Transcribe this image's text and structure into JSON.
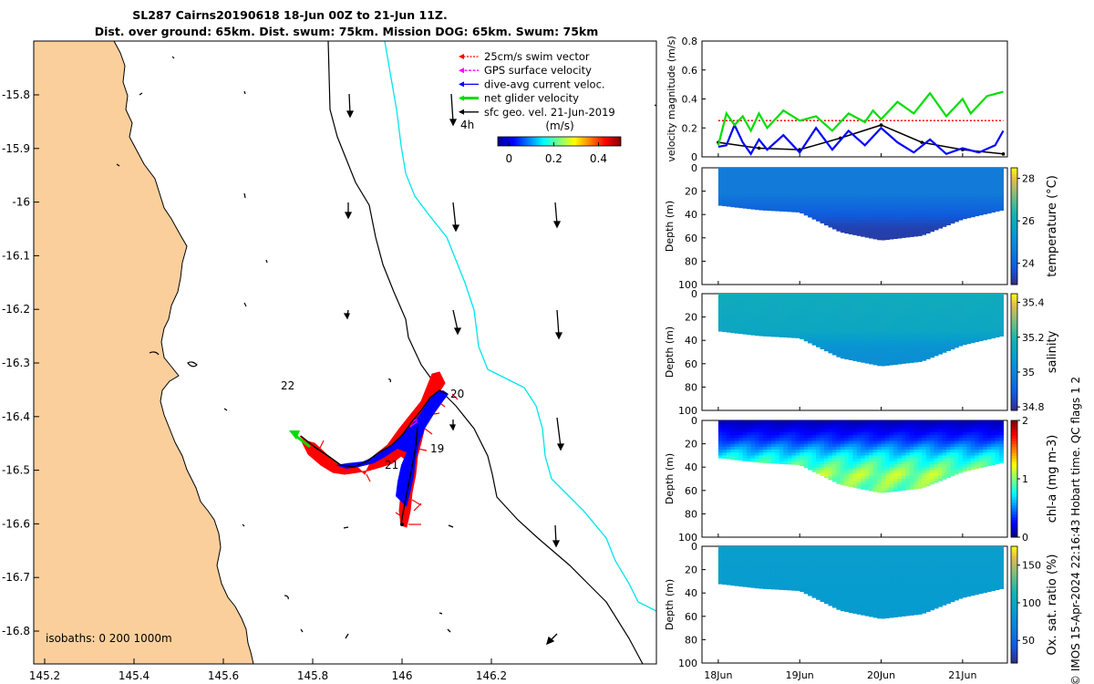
{
  "title": {
    "line1": "SL287 Cairns20190618 18-Jun 00Z to 21-Jun 11Z.",
    "line2": "Dist. over ground: 65km. Dist. swum: 75km. Mission DOG: 65km. Swum: 75km"
  },
  "colors": {
    "land": "#fbcf9c",
    "isobath": "#000000",
    "isobath1000": "#00e5ee",
    "swim": "#ff0000",
    "gps": "#ff00ff",
    "current": "#0000ff",
    "net": "#00dd00",
    "geo": "#000000"
  },
  "map": {
    "x_ticks": [
      "145.2",
      "145.4",
      "145.6",
      "145.8",
      "146",
      "146.2"
    ],
    "y_ticks": [
      "-15.8",
      "-15.9",
      "-16",
      "-16.1",
      "-16.2",
      "-16.3",
      "-16.4",
      "-16.5",
      "-16.6",
      "-16.7",
      "-16.8"
    ],
    "legend": [
      {
        "label": "25cm/s swim vector",
        "color": "#ff0000"
      },
      {
        "label": "GPS surface velocity",
        "color": "#ff00ff"
      },
      {
        "label": "dive-avg current veloc.",
        "color": "#0000ff"
      },
      {
        "label": "net glider velocity",
        "color": "#00dd00"
      },
      {
        "label": "sfc geo. vel. 21-Jun-2019",
        "color": "#000000"
      }
    ],
    "colorbar_unit": "(m/s)",
    "colorbar_ticks": [
      "0",
      "0.2",
      "0.4"
    ],
    "time_marker": "4h",
    "day_labels": [
      "19",
      "20",
      "21",
      "22"
    ],
    "isobath_note": "isobaths: 0   200  1000m"
  },
  "chart_data": [
    {
      "type": "line",
      "ylabel": "velocity magnitude (m/s)",
      "ylim": [
        0,
        0.8
      ],
      "y_ticks": [
        "0",
        "0.2",
        "0.4",
        "0.6",
        "0.8"
      ],
      "x_ticks": [
        "18Jun",
        "19Jun",
        "20Jun",
        "21Jun"
      ],
      "xlim": [
        -0.2,
        3.55
      ],
      "series": [
        {
          "color": "#ff0000",
          "style": "dashed",
          "x": [
            0,
            3.5
          ],
          "values": [
            0.25,
            0.25
          ]
        },
        {
          "color": "#000000",
          "style": "markers",
          "x": [
            0,
            0.5,
            1.0,
            1.5,
            2.0,
            2.5,
            3.0,
            3.5
          ],
          "values": [
            0.1,
            0.06,
            0.05,
            0.13,
            0.22,
            0.1,
            0.05,
            0.02
          ]
        },
        {
          "color": "#0000ff",
          "x": [
            0,
            0.1,
            0.2,
            0.3,
            0.4,
            0.5,
            0.6,
            0.8,
            1.0,
            1.2,
            1.4,
            1.6,
            1.8,
            2.0,
            2.2,
            2.4,
            2.6,
            2.8,
            3.0,
            3.2,
            3.4,
            3.5
          ],
          "values": [
            0.07,
            0.08,
            0.22,
            0.1,
            0.02,
            0.12,
            0.05,
            0.15,
            0.03,
            0.2,
            0.05,
            0.18,
            0.08,
            0.2,
            0.1,
            0.03,
            0.12,
            0.02,
            0.06,
            0.03,
            0.08,
            0.18
          ]
        },
        {
          "color": "#00dd00",
          "x": [
            0,
            0.1,
            0.2,
            0.3,
            0.4,
            0.5,
            0.6,
            0.8,
            1.0,
            1.2,
            1.4,
            1.6,
            1.8,
            1.9,
            2.0,
            2.2,
            2.4,
            2.6,
            2.8,
            3.0,
            3.1,
            3.3,
            3.5
          ],
          "values": [
            0.08,
            0.3,
            0.22,
            0.28,
            0.18,
            0.3,
            0.2,
            0.32,
            0.25,
            0.28,
            0.18,
            0.3,
            0.24,
            0.32,
            0.26,
            0.38,
            0.3,
            0.44,
            0.28,
            0.4,
            0.3,
            0.42,
            0.45
          ]
        }
      ]
    },
    {
      "type": "heatmap",
      "ylabel": "Depth (m)",
      "cblabel": "temperature (°C)",
      "ylim": [
        0,
        100
      ],
      "y_ticks": [
        "0",
        "20",
        "40",
        "60",
        "80",
        "100"
      ],
      "clim": [
        23,
        28.5
      ],
      "cb_ticks": [
        {
          "v": 24,
          "t": "24"
        },
        {
          "v": 26,
          "t": "26"
        },
        {
          "v": 28,
          "t": "28"
        }
      ],
      "bottom_depth_x": [
        0,
        0.5,
        1.0,
        1.5,
        2.0,
        2.5,
        3.0,
        3.5
      ],
      "bottom_depth": [
        32,
        36,
        38,
        55,
        62,
        58,
        44,
        36
      ],
      "layers": [
        {
          "z": 0,
          "v": 24.6
        },
        {
          "z": 20,
          "v": 24.6
        },
        {
          "z": 35,
          "v": 24.0
        },
        {
          "z": 50,
          "v": 23.4
        },
        {
          "z": 70,
          "v": 23.2
        }
      ]
    },
    {
      "type": "heatmap",
      "ylabel": "Depth (m)",
      "cblabel": "salinity",
      "ylim": [
        0,
        100
      ],
      "y_ticks": [
        "0",
        "20",
        "40",
        "60",
        "80",
        "100"
      ],
      "clim": [
        34.78,
        35.45
      ],
      "cb_ticks": [
        {
          "v": 34.8,
          "t": "34.8"
        },
        {
          "v": 35.0,
          "t": "35"
        },
        {
          "v": 35.2,
          "t": "35.2"
        },
        {
          "v": 35.4,
          "t": "35.4"
        }
      ],
      "bottom_depth_x": [
        0,
        0.5,
        1.0,
        1.5,
        2.0,
        2.5,
        3.0,
        3.5
      ],
      "bottom_depth": [
        32,
        36,
        38,
        55,
        62,
        58,
        44,
        36
      ],
      "layers": [
        {
          "z": 0,
          "v": 35.15
        },
        {
          "z": 30,
          "v": 35.13
        },
        {
          "z": 45,
          "v": 35.05
        },
        {
          "z": 70,
          "v": 35.02
        }
      ]
    },
    {
      "type": "heatmap",
      "ylabel": "Depth (m)",
      "cblabel": "chl-a (mg m-3)",
      "ylim": [
        0,
        100
      ],
      "y_ticks": [
        "0",
        "20",
        "40",
        "60",
        "80",
        "100"
      ],
      "clim": [
        0,
        2
      ],
      "cb_ticks": [
        {
          "v": 0,
          "t": "0"
        },
        {
          "v": 1,
          "t": "1"
        },
        {
          "v": 2,
          "t": "2"
        }
      ],
      "bottom_depth_x": [
        0,
        0.5,
        1.0,
        1.5,
        2.0,
        2.5,
        3.0,
        3.5
      ],
      "bottom_depth": [
        32,
        36,
        38,
        55,
        62,
        58,
        44,
        36
      ],
      "layers": [
        {
          "z": 0,
          "v": 0.12
        },
        {
          "z": 15,
          "v": 0.35
        },
        {
          "z": 30,
          "v": 0.75
        },
        {
          "z": 45,
          "v": 1.05
        },
        {
          "z": 65,
          "v": 0.9
        }
      ]
    },
    {
      "type": "heatmap",
      "ylabel": "Depth (m)",
      "cblabel": "Ox. sat. ratio (%)",
      "ylim": [
        0,
        100
      ],
      "y_ticks": [
        "0",
        "20",
        "40",
        "60",
        "80",
        "100"
      ],
      "clim": [
        20,
        175
      ],
      "cb_ticks": [
        {
          "v": 50,
          "t": "50"
        },
        {
          "v": 100,
          "t": "100"
        },
        {
          "v": 150,
          "t": "150"
        }
      ],
      "bottom_depth_x": [
        0,
        0.5,
        1.0,
        1.5,
        2.0,
        2.5,
        3.0,
        3.5
      ],
      "bottom_depth": [
        32,
        36,
        38,
        55,
        62,
        58,
        44,
        36
      ],
      "layers": [
        {
          "z": 0,
          "v": 92
        },
        {
          "z": 40,
          "v": 90
        },
        {
          "z": 70,
          "v": 88
        }
      ]
    }
  ],
  "footer": "© IMOS 15-Apr-2024 22:16:43 Hobart time. QC flags 1  2"
}
